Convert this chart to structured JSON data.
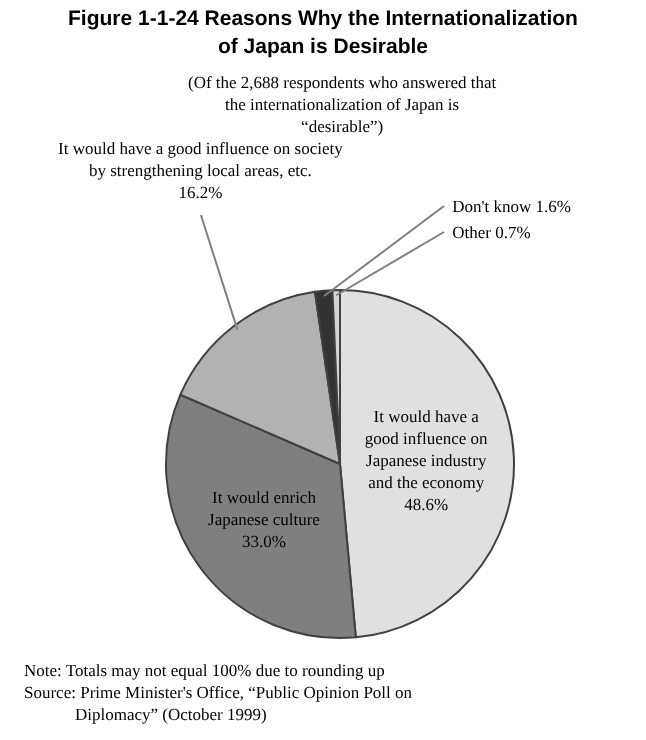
{
  "chart_data": {
    "type": "pie",
    "title": "Figure 1-1-24 Reasons Why the Internationalization of Japan is Desirable",
    "subtitle": "(Of the 2,688 respondents who answered that the internationalization of Japan is “desirable”)",
    "categories": [
      "It would have a good influence on Japanese industry and the economy",
      "It would enrich Japanese culture",
      "It would have a good influence on society by strengthening local areas, etc.",
      "Don't know",
      "Other"
    ],
    "values": [
      48.6,
      33.0,
      16.2,
      1.6,
      0.7
    ],
    "colors": [
      "#e0e0e0",
      "#7f7f7f",
      "#b2b2b2",
      "#333333",
      "#d4d4d4"
    ],
    "value_labels": [
      "48.6%",
      "33.0%",
      "16.2%",
      "1.6%",
      "0.7%"
    ],
    "annotations": [
      "Note: Totals may not equal 100% due to rounding up",
      "Source: Prime Minister's Office, “Public Opinion Poll on Diplomacy” (October 1999)"
    ]
  }
}
